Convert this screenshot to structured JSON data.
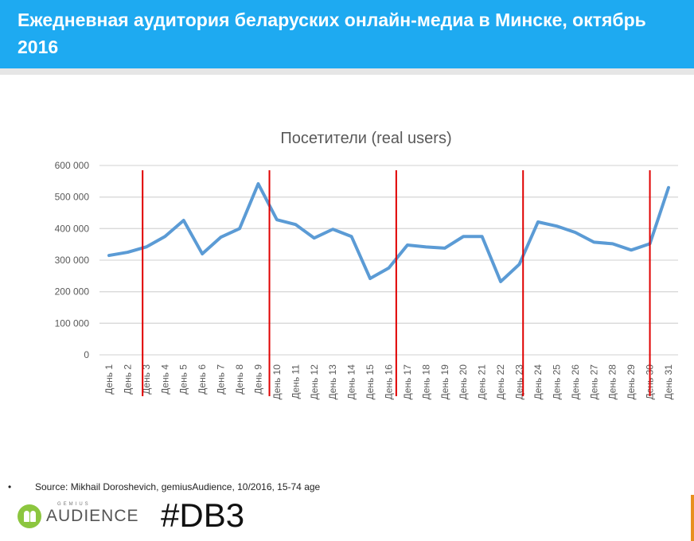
{
  "header": {
    "title": "Ежедневная аудитория беларуских онлайн-медиа в Минске, октябрь 2016"
  },
  "chart_data": {
    "type": "line",
    "title": "Посетители (real users)",
    "xlabel": "",
    "ylabel": "",
    "ylim": [
      0,
      600000
    ],
    "yticks": [
      0,
      100000,
      200000,
      300000,
      400000,
      500000,
      600000
    ],
    "ytick_labels": [
      "0",
      "100 000",
      "200 000",
      "300 000",
      "400 000",
      "500 000",
      "600 000"
    ],
    "grid": true,
    "categories": [
      "День 1",
      "День 2",
      "День 3",
      "День 4",
      "День 5",
      "День 6",
      "День 7",
      "День 8",
      "День 9",
      "День 10",
      "День 11",
      "День 12",
      "День 13",
      "День 14",
      "День 15",
      "День 16",
      "День 17",
      "День 18",
      "День 19",
      "День 20",
      "День 21",
      "День 22",
      "День 23",
      "День 24",
      "День 25",
      "День 26",
      "День 27",
      "День 28",
      "День 29",
      "День 30",
      "День 31"
    ],
    "series": [
      {
        "name": "Посетители",
        "color": "#5b9bd5",
        "values": [
          315000,
          325000,
          342000,
          375000,
          426000,
          320000,
          373000,
          400000,
          542000,
          428000,
          413000,
          370000,
          398000,
          375000,
          242000,
          275000,
          348000,
          342000,
          338000,
          375000,
          375000,
          232000,
          287000,
          421000,
          408000,
          388000,
          357000,
          352000,
          332000,
          352000,
          530000
        ]
      }
    ],
    "week_markers": [
      2.8,
      9.6,
      16.4,
      23.2,
      30.0
    ],
    "marker_color": "#e00000"
  },
  "footer": {
    "source": "Source: Mikhail Doroshevich, gemiusAudience,  10/2016, 15-74 age",
    "bullet": "•",
    "logo_small": "GEMIUS",
    "logo_big": "AUDIENCE",
    "hashtag": "#DB3"
  }
}
